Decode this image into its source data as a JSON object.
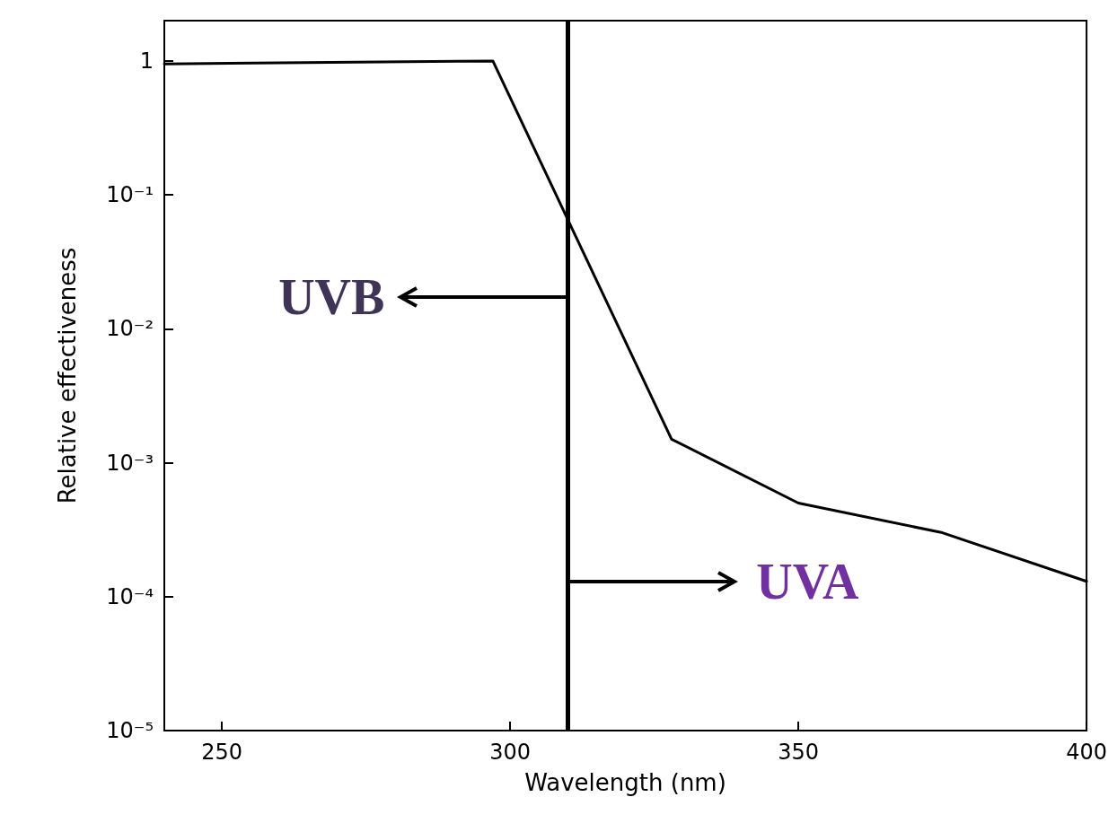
{
  "chart_data": {
    "type": "line",
    "xlabel": "Wavelength (nm)",
    "ylabel": "Relative effectiveness",
    "log": "y",
    "x": [
      240,
      297,
      328,
      350,
      375,
      400
    ],
    "series": [
      {
        "color": "#000000",
        "values": [
          0.95,
          1,
          0.0015,
          0.0005,
          0.0003,
          0.00013
        ]
      }
    ],
    "xlim": [
      240,
      400
    ],
    "xticks": [
      250,
      300,
      350,
      400
    ],
    "ylim": [
      1e-05,
      2
    ],
    "yticks": [
      {
        "value": 1e-05,
        "label": "10⁻⁵"
      },
      {
        "value": 0.0001,
        "label": "10⁻⁴"
      },
      {
        "value": 0.001,
        "label": "10⁻³"
      },
      {
        "value": 0.01,
        "label": "10⁻²"
      },
      {
        "value": 0.1,
        "label": "10⁻¹"
      },
      1
    ],
    "ref_lines": [
      {
        "axis": "x",
        "value": 310,
        "color": "#000000"
      }
    ],
    "annotations": [
      "UVB",
      "UVA"
    ],
    "grid": false,
    "marker": "none",
    "line_style": "solid"
  }
}
